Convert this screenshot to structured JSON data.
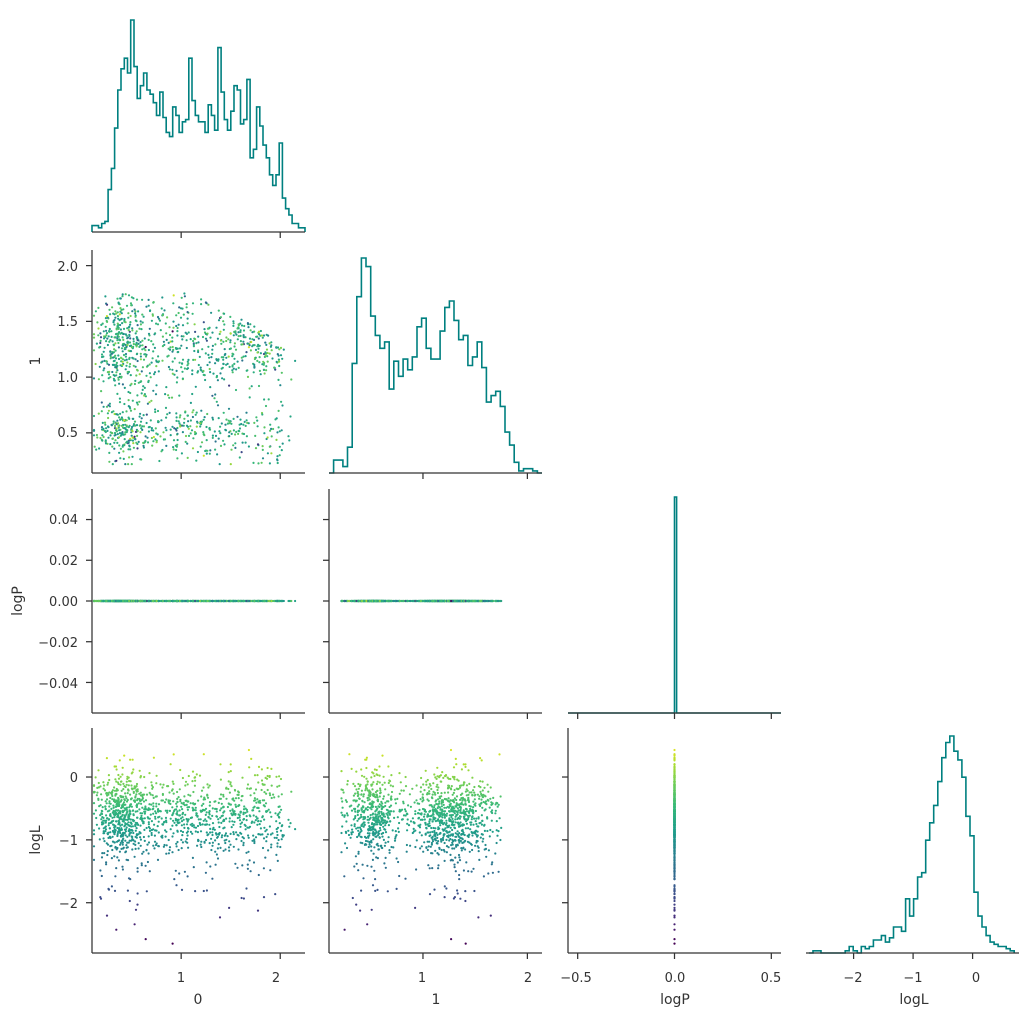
{
  "figure": {
    "type": "corner-pairplot",
    "variables": [
      "0",
      "1",
      "logP",
      "logL"
    ],
    "colors": {
      "histogram": "#008080",
      "axes": "#333333",
      "colormap": "viridis"
    },
    "color_by": "logL"
  },
  "chart_data": [
    {
      "type": "histogram",
      "panel": "hist-0",
      "xlabel": "",
      "ylabel": "",
      "ylim": [
        0,
        1
      ],
      "bin_edges": [
        0.1,
        2.25
      ],
      "counts_relative": [
        0.03,
        0.03,
        0.02,
        0.04,
        0.05,
        0.2,
        0.3,
        0.49,
        0.67,
        0.77,
        0.82,
        0.75,
        1.0,
        0.78,
        0.63,
        0.69,
        0.75,
        0.67,
        0.65,
        0.61,
        0.55,
        0.66,
        0.54,
        0.47,
        0.45,
        0.59,
        0.55,
        0.47,
        0.52,
        0.53,
        0.82,
        0.62,
        0.55,
        0.52,
        0.52,
        0.47,
        0.6,
        0.55,
        0.48,
        0.87,
        0.66,
        0.53,
        0.48,
        0.57,
        0.69,
        0.67,
        0.51,
        0.53,
        0.72,
        0.35,
        0.39,
        0.59,
        0.5,
        0.41,
        0.35,
        0.27,
        0.22,
        0.27,
        0.42,
        0.16,
        0.11,
        0.08,
        0.04,
        0.04,
        0.02,
        0.02
      ]
    },
    {
      "type": "scatter",
      "panel": "scatter-1-0",
      "xlabel": "",
      "ylabel": "1",
      "xlim": [
        0.1,
        2.25
      ],
      "ylim": [
        0.14,
        2.14
      ],
      "yticks": [
        "0.5",
        "1.0",
        "1.5",
        "2.0"
      ],
      "note": "about 1300 samples, x range 0.1-2.2, y range 0.2-2.05; colored by logL"
    },
    {
      "type": "histogram",
      "panel": "hist-1",
      "xlabel": "",
      "ylabel": "",
      "ylim": [
        0,
        1
      ],
      "bin_edges": [
        0.1,
        2.14
      ],
      "counts_relative": [
        0.0,
        0.06,
        0.06,
        0.03,
        0.12,
        0.51,
        0.82,
        1.0,
        0.96,
        0.73,
        0.64,
        0.58,
        0.61,
        0.39,
        0.52,
        0.45,
        0.53,
        0.48,
        0.54,
        0.68,
        0.72,
        0.58,
        0.53,
        0.53,
        0.66,
        0.77,
        0.8,
        0.71,
        0.62,
        0.64,
        0.5,
        0.54,
        0.61,
        0.49,
        0.33,
        0.36,
        0.38,
        0.31,
        0.19,
        0.13,
        0.05,
        0.01,
        0.02,
        0.02,
        0.01,
        0.0
      ]
    },
    {
      "type": "scatter",
      "panel": "scatter-2-0",
      "xlabel": "",
      "ylabel": "logP",
      "xlim": [
        0.1,
        2.25
      ],
      "ylim": [
        -0.055,
        0.055
      ],
      "yticks": [
        "0.04",
        "0.02",
        "0.00",
        "−0.02",
        "−0.04"
      ],
      "note": "all logP values are 0.00"
    },
    {
      "type": "scatter",
      "panel": "scatter-2-1",
      "xlabel": "",
      "ylabel": "",
      "xlim": [
        0.1,
        2.14
      ],
      "ylim": [
        -0.055,
        0.055
      ]
    },
    {
      "type": "histogram",
      "panel": "hist-2",
      "xlabel": "",
      "ylabel": "",
      "xlim": [
        -0.55,
        0.55
      ],
      "ylim": [
        0,
        1
      ],
      "bin_edges": [
        -0.55,
        0.55
      ],
      "counts_relative": [
        0,
        0,
        0,
        0,
        0,
        0,
        0,
        0,
        0,
        0,
        0,
        0,
        0,
        0,
        0,
        0,
        0,
        0,
        0,
        0,
        0,
        0,
        0,
        0,
        0,
        0,
        0,
        0,
        0,
        0,
        0,
        0,
        0,
        0,
        0,
        0,
        0,
        0,
        0,
        0,
        0,
        0,
        0,
        0,
        0,
        0,
        0,
        0,
        0,
        0,
        1.0,
        0,
        0,
        0,
        0,
        0,
        0,
        0,
        0,
        0,
        0,
        0,
        0,
        0,
        0,
        0,
        0,
        0,
        0,
        0,
        0,
        0,
        0,
        0,
        0,
        0,
        0,
        0,
        0,
        0,
        0,
        0,
        0,
        0,
        0,
        0,
        0,
        0,
        0,
        0,
        0,
        0,
        0,
        0,
        0,
        0,
        0,
        0,
        0,
        0
      ]
    },
    {
      "type": "scatter",
      "panel": "scatter-3-0",
      "xlabel": "0",
      "ylabel": "logL",
      "xlim": [
        0.1,
        2.25
      ],
      "ylim": [
        -2.8,
        0.78
      ],
      "xticks": [
        "1",
        "2"
      ],
      "yticks": [
        "0",
        "−1",
        "−2"
      ]
    },
    {
      "type": "scatter",
      "panel": "scatter-3-1",
      "xlabel": "1",
      "ylabel": "",
      "xlim": [
        0.1,
        2.14
      ],
      "ylim": [
        -2.8,
        0.78
      ],
      "xticks": [
        "1",
        "2"
      ]
    },
    {
      "type": "scatter",
      "panel": "scatter-3-2",
      "xlabel": "logP",
      "ylabel": "",
      "xlim": [
        -0.55,
        0.55
      ],
      "ylim": [
        -2.8,
        0.78
      ],
      "xticks": [
        "−0.5",
        "0.0",
        "0.5"
      ],
      "note": "all points at logP = 0.0, logL spans -2.65 to 0.6"
    },
    {
      "type": "histogram",
      "panel": "hist-3",
      "xlabel": "logL",
      "ylabel": "",
      "xlim": [
        -2.8,
        0.78
      ],
      "ylim": [
        0,
        1
      ],
      "xticks": [
        "−2",
        "−1",
        "0"
      ],
      "bin_edges": [
        -2.75,
        0.7
      ],
      "counts_relative": [
        0.0,
        0.01,
        0.01,
        0.0,
        0.0,
        0.0,
        0.0,
        0.0,
        0.0,
        0.01,
        0.03,
        0.01,
        0.0,
        0.03,
        0.02,
        0.03,
        0.06,
        0.06,
        0.08,
        0.05,
        0.07,
        0.12,
        0.12,
        0.1,
        0.25,
        0.17,
        0.25,
        0.35,
        0.37,
        0.52,
        0.6,
        0.68,
        0.79,
        0.9,
        0.97,
        1.0,
        0.93,
        0.89,
        0.81,
        0.63,
        0.54,
        0.28,
        0.17,
        0.12,
        0.08,
        0.05,
        0.04,
        0.03,
        0.03,
        0.02,
        0.01
      ]
    }
  ],
  "axes": {
    "ylabel_1": "1",
    "ylabel_logP": "logP",
    "ylabel_logL": "logL",
    "xlabel_0": "0",
    "xlabel_1": "1",
    "xlabel_logP": "logP",
    "xlabel_logL": "logL",
    "ticks_var0": [
      "1",
      "2"
    ],
    "ticks_var1_y": [
      "0.5",
      "1.0",
      "1.5",
      "2.0"
    ],
    "ticks_var1_x": [
      "1",
      "2"
    ],
    "ticks_logP_y": [
      "0.04",
      "0.02",
      "0.00",
      "−0.02",
      "−0.04"
    ],
    "ticks_logP_x": [
      "−0.5",
      "0.0",
      "0.5"
    ],
    "ticks_logL_y": [
      "0",
      "−1",
      "−2"
    ],
    "ticks_logL_x": [
      "−2",
      "−1",
      "0"
    ]
  }
}
